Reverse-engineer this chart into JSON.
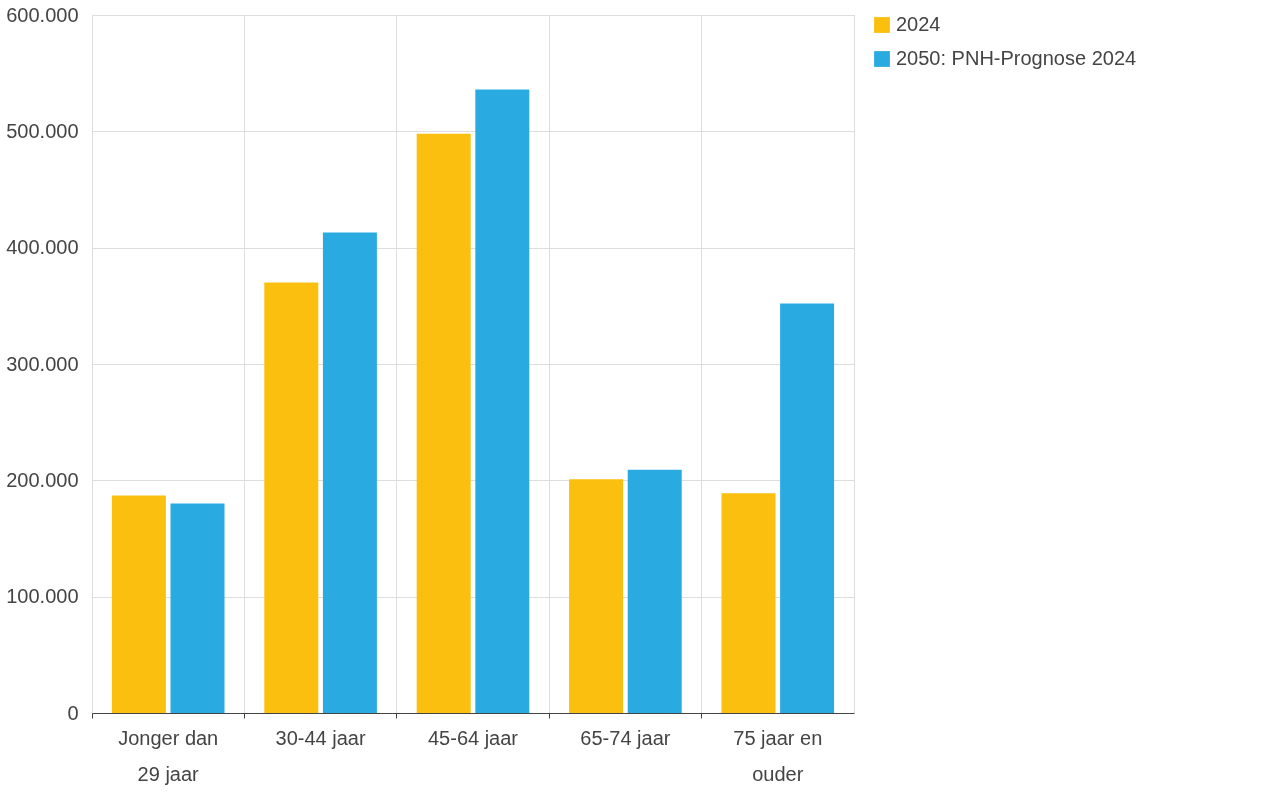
{
  "chart_data": {
    "type": "bar",
    "categories": [
      "Jonger dan 29 jaar",
      "30-44 jaar",
      "45-64 jaar",
      "65-74 jaar",
      "75 jaar en ouder"
    ],
    "series": [
      {
        "name": "2024",
        "color": "#fbbf0f",
        "values": [
          187000,
          370000,
          498000,
          201000,
          189000
        ]
      },
      {
        "name": "2050: PNH-Prognose 2024",
        "color": "#29abe2",
        "values": [
          180000,
          413000,
          536000,
          209000,
          352000
        ]
      }
    ],
    "ylim": [
      0,
      600000
    ],
    "yticks": [
      {
        "value": 0,
        "label": "0"
      },
      {
        "value": 100000,
        "label": "100.000"
      },
      {
        "value": 200000,
        "label": "200.000"
      },
      {
        "value": 300000,
        "label": "300.000"
      },
      {
        "value": 400000,
        "label": "400.000"
      },
      {
        "value": 500000,
        "label": "500.000"
      },
      {
        "value": 600000,
        "label": "600.000"
      }
    ],
    "grid": true,
    "legend": "right"
  }
}
